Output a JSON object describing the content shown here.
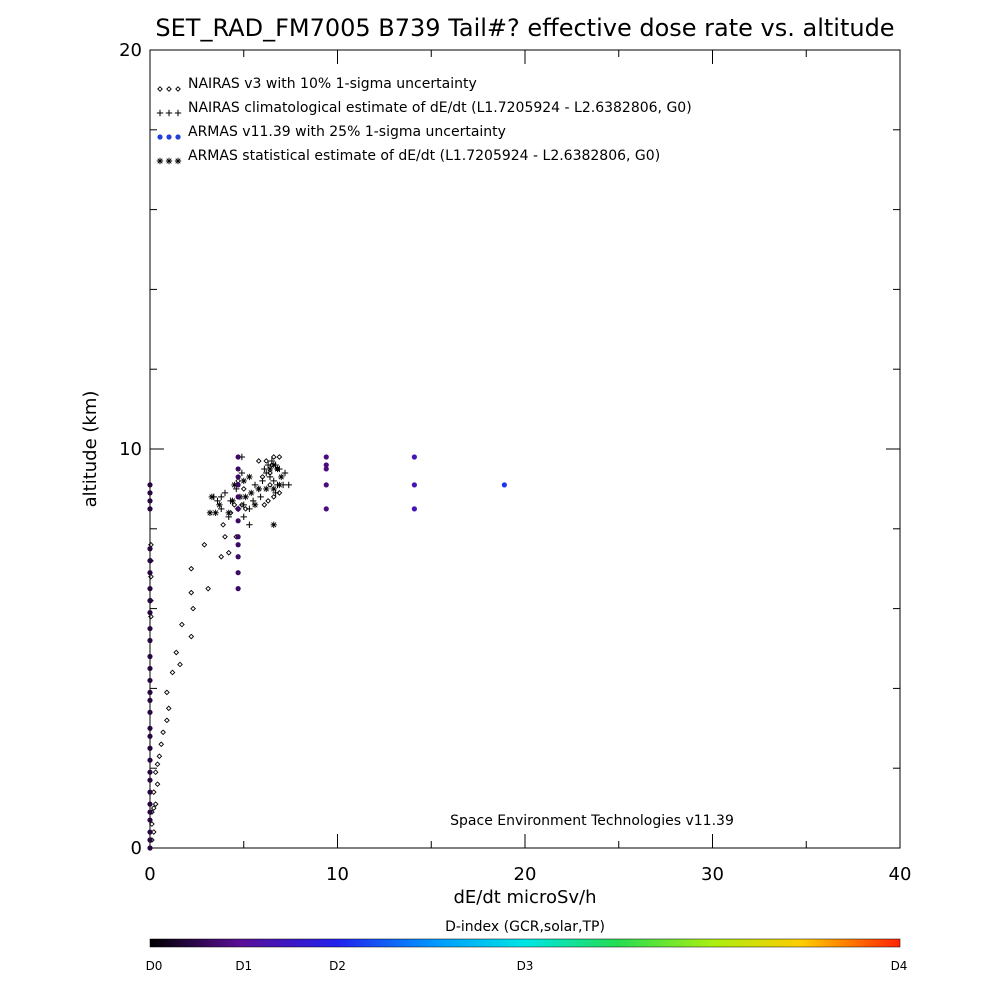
{
  "chart_data": {
    "type": "scatter",
    "title": "SET_RAD_FM7005  B739 Tail#? effective dose rate vs. altitude",
    "xlabel": "dE/dt microSv/h",
    "ylabel": "altitude (km)",
    "xlim": [
      0,
      40
    ],
    "ylim": [
      0,
      20
    ],
    "x_ticks": [
      0,
      10,
      20,
      30,
      40
    ],
    "y_ticks": [
      0,
      10,
      20
    ],
    "legend_position": "top-left",
    "annotation": "Space Environment Technologies v11.39",
    "colorbar": {
      "title": "D-index (GCR,solar,TP)",
      "labels": [
        "D0",
        "D1",
        "D2",
        "D3",
        "D4"
      ],
      "label_positions": [
        0,
        0.125,
        0.25,
        0.5,
        1.0
      ]
    },
    "series": [
      {
        "name": "NAIRAS v3 with 10% 1-sigma uncertainty",
        "marker": "diamond",
        "color": "#000000",
        "points": [
          [
            0.1,
            0.2
          ],
          [
            0.2,
            0.4
          ],
          [
            0.1,
            0.6
          ],
          [
            0.1,
            0.9
          ],
          [
            0.2,
            1.0
          ],
          [
            0.3,
            1.1
          ],
          [
            0.2,
            1.4
          ],
          [
            0.4,
            1.6
          ],
          [
            0.3,
            1.9
          ],
          [
            0.4,
            2.1
          ],
          [
            0.5,
            2.3
          ],
          [
            0.6,
            2.6
          ],
          [
            0.7,
            2.9
          ],
          [
            0.9,
            3.2
          ],
          [
            1.0,
            3.5
          ],
          [
            0.9,
            3.9
          ],
          [
            1.2,
            4.4
          ],
          [
            1.6,
            4.6
          ],
          [
            1.4,
            4.9
          ],
          [
            2.2,
            5.3
          ],
          [
            1.7,
            5.6
          ],
          [
            2.3,
            6.0
          ],
          [
            2.2,
            6.4
          ],
          [
            3.1,
            6.5
          ],
          [
            2.2,
            7.0
          ],
          [
            3.8,
            7.3
          ],
          [
            4.2,
            7.4
          ],
          [
            2.9,
            7.6
          ],
          [
            4.0,
            7.8
          ],
          [
            4.6,
            7.8
          ],
          [
            3.9,
            8.1
          ],
          [
            4.3,
            8.4
          ],
          [
            4.5,
            8.6
          ],
          [
            4.9,
            8.6
          ],
          [
            5.1,
            8.5
          ],
          [
            6.1,
            8.6
          ],
          [
            6.3,
            8.7
          ],
          [
            6.6,
            8.8
          ],
          [
            6.9,
            8.9
          ],
          [
            6.4,
            9.1
          ],
          [
            6.0,
            9.3
          ],
          [
            6.4,
            9.4
          ],
          [
            6.8,
            9.5
          ],
          [
            6.5,
            9.6
          ],
          [
            5.8,
            9.7
          ],
          [
            6.2,
            9.7
          ],
          [
            6.6,
            9.8
          ],
          [
            6.9,
            9.8
          ],
          [
            4.7,
            9.2
          ],
          [
            5.0,
            9.0
          ],
          [
            0.05,
            5.8
          ],
          [
            0.05,
            6.2
          ],
          [
            0.05,
            6.8
          ],
          [
            0.05,
            7.2
          ],
          [
            0.05,
            7.6
          ]
        ]
      },
      {
        "name": "NAIRAS climatological estimate of dE/dt (L1.7205924 - L2.6382806, G0)",
        "marker": "plus",
        "color": "#000000",
        "points": [
          [
            3.4,
            8.8
          ],
          [
            3.8,
            8.8
          ],
          [
            4.0,
            8.9
          ],
          [
            4.6,
            9.0
          ],
          [
            4.3,
            8.7
          ],
          [
            4.7,
            8.5
          ],
          [
            5.0,
            8.6
          ],
          [
            5.3,
            8.5
          ],
          [
            3.8,
            8.5
          ],
          [
            3.6,
            8.7
          ],
          [
            4.2,
            8.3
          ],
          [
            5.0,
            8.3
          ],
          [
            5.3,
            8.1
          ],
          [
            4.9,
            9.4
          ],
          [
            5.6,
            9.1
          ],
          [
            6.0,
            9.2
          ],
          [
            6.2,
            9.4
          ],
          [
            6.4,
            9.3
          ],
          [
            6.6,
            9.2
          ],
          [
            6.8,
            9.1
          ],
          [
            7.1,
            9.1
          ],
          [
            7.4,
            9.1
          ],
          [
            6.1,
            9.5
          ],
          [
            6.3,
            9.6
          ],
          [
            6.5,
            9.7
          ],
          [
            6.7,
            9.6
          ],
          [
            6.9,
            9.5
          ],
          [
            7.2,
            9.4
          ],
          [
            5.8,
            9.0
          ],
          [
            5.9,
            8.8
          ],
          [
            6.7,
            8.9
          ],
          [
            4.9,
            9.8
          ],
          [
            5.5,
            8.7
          ]
        ]
      },
      {
        "name": "ARMAS v11.39 with 25% 1-sigma uncertainty",
        "marker": "dot",
        "color": "#2040d8",
        "points": [
          {
            "x": 0,
            "y": 0.0,
            "d": 0.05
          },
          {
            "x": 0,
            "y": 0.2,
            "d": 0.05
          },
          {
            "x": 0,
            "y": 0.4,
            "d": 0.05
          },
          {
            "x": 0,
            "y": 0.7,
            "d": 0.05
          },
          {
            "x": 0,
            "y": 0.9,
            "d": 0.05
          },
          {
            "x": 0,
            "y": 1.1,
            "d": 0.05
          },
          {
            "x": 0,
            "y": 1.4,
            "d": 0.05
          },
          {
            "x": 0,
            "y": 1.7,
            "d": 0.05
          },
          {
            "x": 0,
            "y": 1.9,
            "d": 0.05
          },
          {
            "x": 0,
            "y": 2.2,
            "d": 0.05
          },
          {
            "x": 0,
            "y": 2.5,
            "d": 0.05
          },
          {
            "x": 0,
            "y": 2.8,
            "d": 0.05
          },
          {
            "x": 0,
            "y": 3.0,
            "d": 0.05
          },
          {
            "x": 0,
            "y": 3.4,
            "d": 0.05
          },
          {
            "x": 0,
            "y": 3.7,
            "d": 0.05
          },
          {
            "x": 0,
            "y": 3.9,
            "d": 0.05
          },
          {
            "x": 0,
            "y": 4.2,
            "d": 0.05
          },
          {
            "x": 0,
            "y": 4.5,
            "d": 0.05
          },
          {
            "x": 0,
            "y": 4.8,
            "d": 0.05
          },
          {
            "x": 0,
            "y": 5.2,
            "d": 0.05
          },
          {
            "x": 0,
            "y": 5.5,
            "d": 0.05
          },
          {
            "x": 0,
            "y": 5.9,
            "d": 0.05
          },
          {
            "x": 0,
            "y": 6.2,
            "d": 0.05
          },
          {
            "x": 0,
            "y": 6.5,
            "d": 0.05
          },
          {
            "x": 0,
            "y": 6.9,
            "d": 0.05
          },
          {
            "x": 0,
            "y": 7.2,
            "d": 0.05
          },
          {
            "x": 0,
            "y": 7.5,
            "d": 0.05
          },
          {
            "x": 0,
            "y": 8.5,
            "d": 0.05
          },
          {
            "x": 0,
            "y": 8.7,
            "d": 0.05
          },
          {
            "x": 0,
            "y": 8.9,
            "d": 0.05
          },
          {
            "x": 0,
            "y": 9.1,
            "d": 0.05
          },
          {
            "x": 4.7,
            "y": 6.5,
            "d": 0.08
          },
          {
            "x": 4.7,
            "y": 6.9,
            "d": 0.08
          },
          {
            "x": 4.7,
            "y": 7.3,
            "d": 0.08
          },
          {
            "x": 4.7,
            "y": 7.6,
            "d": 0.08
          },
          {
            "x": 4.7,
            "y": 7.8,
            "d": 0.08
          },
          {
            "x": 4.7,
            "y": 8.2,
            "d": 0.08
          },
          {
            "x": 4.7,
            "y": 8.5,
            "d": 0.08
          },
          {
            "x": 4.7,
            "y": 8.8,
            "d": 0.08
          },
          {
            "x": 4.7,
            "y": 9.1,
            "d": 0.08
          },
          {
            "x": 4.7,
            "y": 9.3,
            "d": 0.08
          },
          {
            "x": 4.7,
            "y": 9.5,
            "d": 0.08
          },
          {
            "x": 4.7,
            "y": 9.8,
            "d": 0.08
          },
          {
            "x": 9.4,
            "y": 8.5,
            "d": 0.1
          },
          {
            "x": 9.4,
            "y": 9.1,
            "d": 0.1
          },
          {
            "x": 9.4,
            "y": 9.5,
            "d": 0.1
          },
          {
            "x": 9.4,
            "y": 9.6,
            "d": 0.1
          },
          {
            "x": 9.4,
            "y": 9.8,
            "d": 0.1
          },
          {
            "x": 14.1,
            "y": 8.5,
            "d": 0.17
          },
          {
            "x": 14.1,
            "y": 9.1,
            "d": 0.17
          },
          {
            "x": 14.1,
            "y": 9.8,
            "d": 0.17
          },
          {
            "x": 18.9,
            "y": 9.1,
            "d": 0.27
          }
        ]
      },
      {
        "name": "ARMAS statistical estimate of dE/dt (L1.7205924 - L2.6382806, G0)",
        "marker": "asterisk",
        "color": "#000000",
        "points": [
          [
            3.2,
            8.4
          ],
          [
            3.5,
            8.4
          ],
          [
            3.3,
            8.8
          ],
          [
            3.7,
            8.6
          ],
          [
            4.4,
            8.7
          ],
          [
            4.8,
            8.8
          ],
          [
            5.1,
            8.8
          ],
          [
            5.4,
            8.9
          ],
          [
            5.6,
            8.6
          ],
          [
            5.8,
            9.0
          ],
          [
            6.2,
            9.0
          ],
          [
            6.6,
            9.0
          ],
          [
            6.9,
            9.1
          ],
          [
            7.0,
            9.3
          ],
          [
            6.8,
            9.5
          ],
          [
            6.4,
            9.5
          ],
          [
            6.6,
            9.6
          ],
          [
            5.0,
            9.2
          ],
          [
            5.3,
            9.3
          ],
          [
            6.6,
            8.1
          ],
          [
            4.5,
            9.1
          ],
          [
            4.2,
            8.4
          ]
        ]
      }
    ]
  }
}
